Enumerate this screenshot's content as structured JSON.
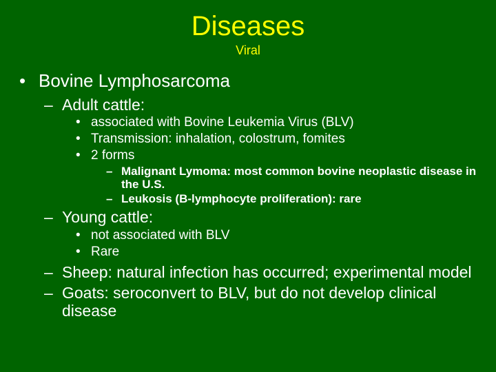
{
  "colors": {
    "background": "#006400",
    "title": "#ffff00",
    "text": "#ffffff"
  },
  "typography": {
    "title_fontsize": 40,
    "subtitle_fontsize": 18,
    "lvl1_fontsize": 26,
    "lvl2_fontsize": 23,
    "lvl3_fontsize": 19,
    "lvl4_fontsize": 17,
    "lvl4_fontweight": "bold",
    "font_family": "Arial"
  },
  "title": "Diseases",
  "subtitle": "Viral",
  "lvl1_0": "Bovine Lymphosarcoma",
  "lvl2_0": "Adult cattle:",
  "lvl3_0": "associated with Bovine Leukemia Virus (BLV)",
  "lvl3_1": "Transmission: inhalation, colostrum, fomites",
  "lvl3_2": "2 forms",
  "lvl4_0": "Malignant Lymoma: most common bovine neoplastic disease in the U.S.",
  "lvl4_1": "Leukosis (B-lymphocyte proliferation): rare",
  "lvl2_1": "Young cattle:",
  "lvl3_3": "not associated with BLV",
  "lvl3_4": "Rare",
  "lvl2_2": "Sheep: natural infection has occurred; experimental model",
  "lvl2_3": "Goats: seroconvert to BLV, but do not develop clinical disease"
}
